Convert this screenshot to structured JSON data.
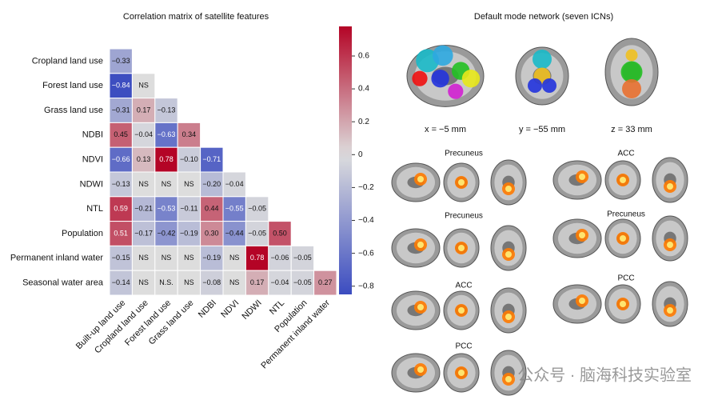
{
  "chart_data": {
    "type": "heatmap",
    "title": "Correlation matrix of satellite features",
    "columns": [
      "Built-up land use",
      "Cropland land use",
      "Forest land use",
      "Grass land use",
      "NDBI",
      "NDVI",
      "NDWI",
      "NTL",
      "Population",
      "Permanent inland water"
    ],
    "rows": [
      {
        "name": "Cropland land use",
        "values": [
          -0.33
        ],
        "value_labels": [
          "−0.33"
        ]
      },
      {
        "name": "Forest land use",
        "values": [
          -0.84,
          null
        ],
        "value_labels": [
          "−0.84",
          "NS"
        ]
      },
      {
        "name": "Grass land use",
        "values": [
          -0.31,
          0.17,
          -0.13
        ],
        "value_labels": [
          "−0.31",
          "0.17",
          "−0.13"
        ]
      },
      {
        "name": "NDBI",
        "values": [
          0.45,
          -0.04,
          -0.63,
          0.34
        ],
        "value_labels": [
          "0.45",
          "−0.04",
          "−0.63",
          "0.34"
        ]
      },
      {
        "name": "NDVI",
        "values": [
          -0.66,
          0.13,
          0.78,
          -0.1,
          -0.71
        ],
        "value_labels": [
          "−0.66",
          "0.13",
          "0.78",
          "−0.10",
          "−0.71"
        ]
      },
      {
        "name": "NDWI",
        "values": [
          -0.13,
          null,
          null,
          null,
          -0.2,
          -0.04
        ],
        "value_labels": [
          "−0.13",
          "NS",
          "NS",
          "NS",
          "−0.20",
          "−0.04"
        ]
      },
      {
        "name": "NTL",
        "values": [
          0.59,
          -0.21,
          -0.53,
          -0.11,
          0.44,
          -0.55,
          -0.05
        ],
        "value_labels": [
          "0.59",
          "−0.21",
          "−0.53",
          "−0.11",
          "0.44",
          "−0.55",
          "−0.05"
        ]
      },
      {
        "name": "Population",
        "values": [
          0.51,
          -0.17,
          -0.42,
          -0.19,
          0.3,
          -0.44,
          -0.05,
          0.5
        ],
        "value_labels": [
          "0.51",
          "−0.17",
          "−0.42",
          "−0.19",
          "0.30",
          "−0.44",
          "−0.05",
          "0.50"
        ]
      },
      {
        "name": "Permanent inland water",
        "values": [
          -0.15,
          null,
          null,
          null,
          -0.19,
          null,
          0.78,
          -0.06,
          -0.05
        ],
        "value_labels": [
          "−0.15",
          "NS",
          "NS",
          "NS",
          "−0.19",
          "NS",
          "0.78",
          "−0.06",
          "−0.05"
        ]
      },
      {
        "name": "Seasonal water area",
        "values": [
          -0.14,
          null,
          null,
          null,
          -0.08,
          null,
          0.17,
          -0.04,
          -0.05,
          0.27
        ],
        "value_labels": [
          "−0.14",
          "NS",
          "N.S.",
          "NS",
          "−0.08",
          "NS",
          "0.17",
          "−0.04",
          "−0.05",
          "0.27"
        ]
      }
    ],
    "clim": [
      -0.85,
      0.78
    ],
    "cticks": [
      {
        "value": 0.6,
        "label": "0.6"
      },
      {
        "value": 0.4,
        "label": "0.4"
      },
      {
        "value": 0.2,
        "label": "0.2"
      },
      0,
      {
        "value": -0.2,
        "label": "−0.2"
      },
      {
        "value": -0.4,
        "label": "−0.4"
      },
      {
        "value": -0.6,
        "label": "−0.6"
      },
      {
        "value": -0.8,
        "label": "−0.8"
      }
    ],
    "colormap": [
      "#3b4cc0",
      "#dddddd",
      "#b40426"
    ]
  },
  "brain_panel": {
    "title": "Default mode network (seven ICNs)",
    "coords": [
      "x = −5 mm",
      "y = −55 mm",
      "z = 33 mm"
    ],
    "networks": [
      "Precuneus",
      "Precuneus",
      "ACC",
      "PCC",
      "ACC",
      "Precuneus",
      "PCC"
    ],
    "watermark": "公众号 · 脑海科技实验室"
  }
}
